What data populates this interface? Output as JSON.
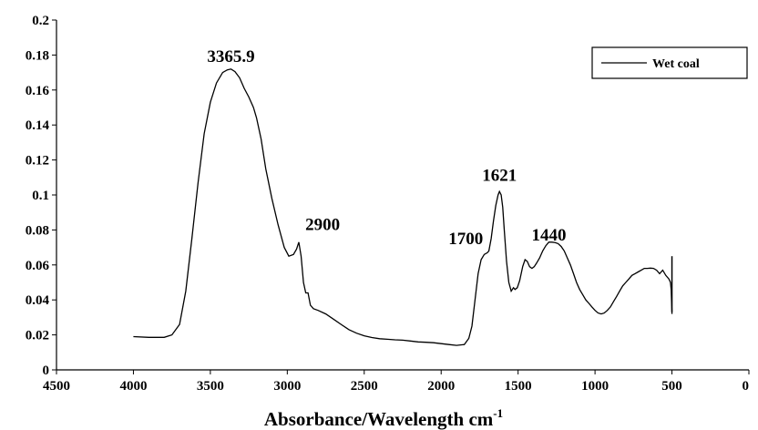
{
  "chart_data": {
    "type": "line",
    "title": "",
    "xlabel": "Absorbance/Wavelength cm",
    "xlabel_superscript": "-1",
    "ylabel": "",
    "xlim": [
      4500,
      0
    ],
    "ylim": [
      0,
      0.2
    ],
    "x_reversed": true,
    "grid": false,
    "legend_position": "top-right",
    "x_ticks": [
      "4500",
      "4000",
      "3500",
      "3000",
      "2500",
      "2000",
      "1500",
      "1000",
      "500",
      "0"
    ],
    "y_ticks": [
      "0",
      "0.02",
      "0.04",
      "0.06",
      "0.08",
      "0.1",
      "0.12",
      "0.14",
      "0.16",
      "0.18",
      "0.2"
    ],
    "annotations": [
      {
        "text": "3365.9",
        "x": 3365.9,
        "y": 0.176
      },
      {
        "text": "2900",
        "x": 2770,
        "y": 0.08
      },
      {
        "text": "1700",
        "x": 1840,
        "y": 0.072
      },
      {
        "text": "1621",
        "x": 1621,
        "y": 0.108
      },
      {
        "text": "1440",
        "x": 1300,
        "y": 0.074
      }
    ],
    "series": [
      {
        "name": "Wet coal",
        "color": "#000000",
        "x": [
          4000,
          3900,
          3800,
          3750,
          3700,
          3660,
          3620,
          3580,
          3540,
          3500,
          3460,
          3420,
          3390,
          3365.9,
          3340,
          3310,
          3280,
          3250,
          3220,
          3200,
          3170,
          3140,
          3100,
          3060,
          3020,
          2990,
          2960,
          2940,
          2925,
          2910,
          2895,
          2880,
          2865,
          2850,
          2830,
          2800,
          2750,
          2700,
          2650,
          2600,
          2550,
          2500,
          2450,
          2400,
          2350,
          2300,
          2250,
          2200,
          2150,
          2100,
          2050,
          2000,
          1950,
          1900,
          1850,
          1820,
          1800,
          1780,
          1760,
          1740,
          1720,
          1700,
          1690,
          1675,
          1660,
          1645,
          1630,
          1621,
          1610,
          1600,
          1590,
          1575,
          1560,
          1545,
          1530,
          1520,
          1505,
          1490,
          1470,
          1455,
          1440,
          1425,
          1410,
          1395,
          1380,
          1360,
          1340,
          1320,
          1300,
          1280,
          1260,
          1240,
          1220,
          1200,
          1180,
          1160,
          1140,
          1120,
          1100,
          1080,
          1060,
          1040,
          1020,
          1000,
          980,
          960,
          940,
          920,
          900,
          880,
          860,
          840,
          820,
          800,
          780,
          760,
          740,
          720,
          700,
          680,
          660,
          640,
          620,
          600,
          580,
          560,
          540,
          520,
          510,
          505,
          500
        ],
        "y": [
          0.019,
          0.0186,
          0.0186,
          0.02,
          0.026,
          0.045,
          0.075,
          0.107,
          0.135,
          0.153,
          0.164,
          0.17,
          0.1715,
          0.172,
          0.1705,
          0.167,
          0.161,
          0.156,
          0.15,
          0.144,
          0.132,
          0.115,
          0.098,
          0.083,
          0.07,
          0.065,
          0.066,
          0.069,
          0.073,
          0.065,
          0.05,
          0.044,
          0.044,
          0.037,
          0.035,
          0.034,
          0.032,
          0.029,
          0.026,
          0.023,
          0.021,
          0.0195,
          0.0185,
          0.0178,
          0.0175,
          0.0172,
          0.017,
          0.0165,
          0.016,
          0.0158,
          0.0155,
          0.015,
          0.0145,
          0.014,
          0.0145,
          0.018,
          0.025,
          0.04,
          0.055,
          0.063,
          0.066,
          0.067,
          0.068,
          0.075,
          0.085,
          0.094,
          0.1,
          0.102,
          0.1,
          0.093,
          0.08,
          0.062,
          0.05,
          0.045,
          0.047,
          0.046,
          0.047,
          0.051,
          0.059,
          0.063,
          0.062,
          0.059,
          0.058,
          0.059,
          0.061,
          0.064,
          0.068,
          0.071,
          0.073,
          0.073,
          0.0728,
          0.0722,
          0.0705,
          0.068,
          0.064,
          0.06,
          0.055,
          0.05,
          0.046,
          0.043,
          0.04,
          0.038,
          0.036,
          0.034,
          0.0325,
          0.032,
          0.0325,
          0.034,
          0.036,
          0.039,
          0.042,
          0.045,
          0.048,
          0.05,
          0.052,
          0.054,
          0.055,
          0.056,
          0.057,
          0.058,
          0.058,
          0.0582,
          0.058,
          0.057,
          0.055,
          0.057,
          0.054,
          0.052,
          0.05,
          0.046,
          0.032
        ]
      }
    ]
  }
}
